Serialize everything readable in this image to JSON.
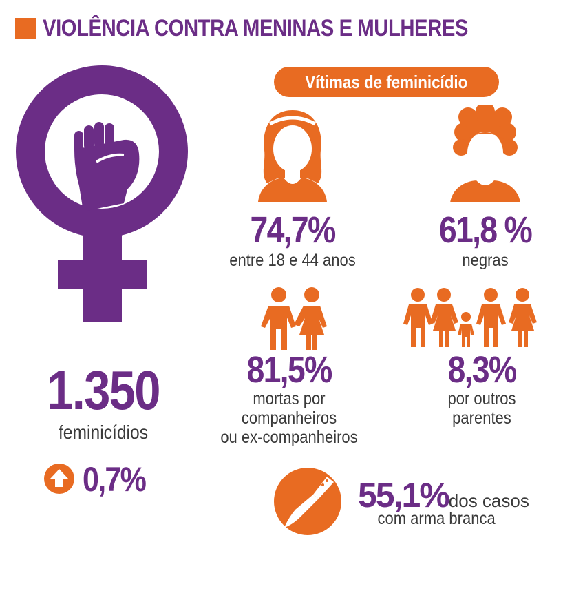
{
  "title": "VIOLÊNCIA CONTRA MENINAS E MULHERES",
  "badge": "Vítimas de feminicídio",
  "colors": {
    "purple": "#6b2d86",
    "orange": "#e86b22",
    "text": "#3a3a3a"
  },
  "icons": [
    "female-symbol-icon",
    "raised-fist-icon",
    "woman-icon",
    "black-woman-icon",
    "couple-icon",
    "family-icon",
    "up-arrow-icon",
    "knife-icon"
  ],
  "main_stat": {
    "value": "1.350",
    "label": "feminicídios",
    "change": "0,7%"
  },
  "stats": {
    "age": {
      "value": "74,7%",
      "label": "entre 18 e 44 anos"
    },
    "race": {
      "value": "61,8 %",
      "label": "negras"
    },
    "partners": {
      "value": "81,5%",
      "line1": "mortas por",
      "line2": "companheiros",
      "line3": "ou ex-companheiros"
    },
    "relatives": {
      "value": "8,3%",
      "line1": "por outros",
      "line2": "parentes"
    },
    "weapon": {
      "value": "55,1%",
      "inline": "dos casos",
      "line2": "com arma branca"
    }
  }
}
